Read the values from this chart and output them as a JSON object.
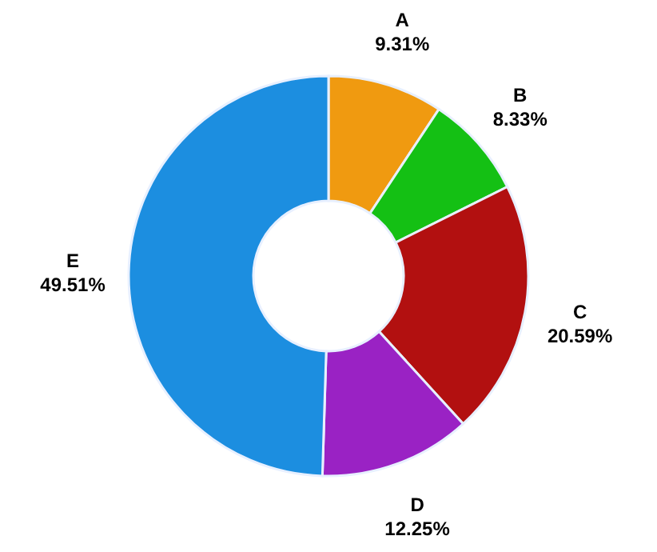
{
  "chart_data": {
    "type": "donut",
    "categories": [
      "A",
      "B",
      "C",
      "D",
      "E"
    ],
    "values": [
      9.31,
      8.33,
      20.59,
      12.25,
      49.51
    ],
    "value_labels": [
      "9.31%",
      "8.33%",
      "20.59%",
      "12.25%",
      "49.51%"
    ],
    "colors": [
      "#f09a10",
      "#14c014",
      "#b21010",
      "#9a22c4",
      "#1c8ee0"
    ]
  }
}
